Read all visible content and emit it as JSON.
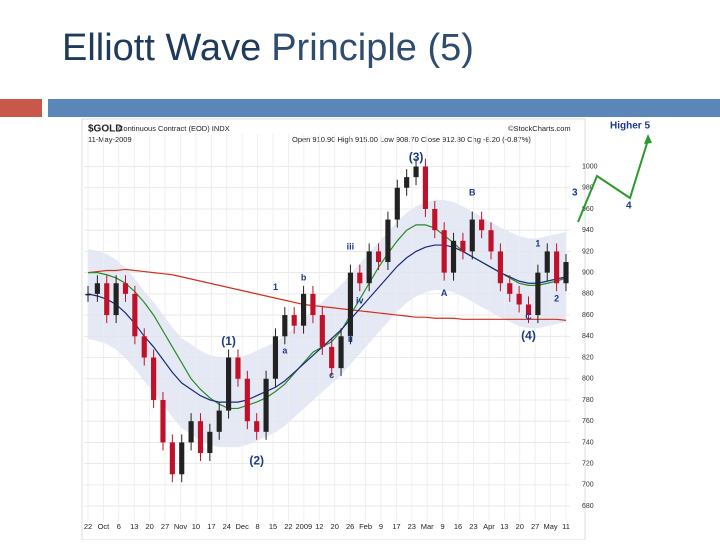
{
  "slide": {
    "title_strong": "Elliott Wave",
    "title_rest": "Principle (5)"
  },
  "chart_data": {
    "type": "candlestick",
    "header": [
      "$GOLD",
      "Continuous Contract (EOD) INDX",
      "11-May-2009",
      "Open 910.90 High 915.00 Low 908.70 Close 912.30 Chg -8.20 (-0.87%)",
      "©StockCharts.com"
    ],
    "values": [
      880,
      890,
      860,
      890,
      880,
      840,
      820,
      780,
      740,
      710,
      740,
      760,
      730,
      750,
      770,
      820,
      800,
      760,
      750,
      800,
      840,
      860,
      850,
      880,
      860,
      830,
      810,
      840,
      900,
      890,
      920,
      910,
      950,
      980,
      990,
      1000,
      960,
      940,
      900,
      930,
      920,
      950,
      940,
      920,
      890,
      880,
      870,
      860,
      900,
      920,
      890,
      910
    ],
    "lines": [
      {
        "color": "#d03020",
        "values": [
          900,
          901,
          902,
          902,
          903,
          902,
          901,
          900,
          899,
          898,
          896,
          894,
          892,
          890,
          888,
          886,
          884,
          882,
          880,
          878,
          876,
          874,
          872,
          870,
          869,
          868,
          867,
          866,
          865,
          864,
          863,
          862,
          861,
          860,
          859,
          858,
          858,
          857,
          857,
          857,
          856,
          856,
          856,
          856,
          856,
          856,
          856,
          856,
          856,
          856,
          856,
          855
        ]
      },
      {
        "color": "#2a8a2a",
        "values": [
          900,
          900,
          898,
          895,
          890,
          882,
          872,
          860,
          845,
          830,
          815,
          800,
          790,
          782,
          776,
          772,
          772,
          775,
          778,
          782,
          788,
          795,
          805,
          815,
          825,
          830,
          835,
          845,
          860,
          875,
          890,
          905,
          918,
          930,
          940,
          945,
          945,
          942,
          935,
          928,
          920,
          915,
          910,
          905,
          900,
          895,
          890,
          888,
          888,
          890,
          892,
          895
        ]
      },
      {
        "color": "#1a2a7a",
        "values": [
          880,
          878,
          875,
          870,
          862,
          852,
          840,
          830,
          818,
          806,
          796,
          790,
          784,
          780,
          778,
          778,
          778,
          780,
          784,
          788,
          792,
          798,
          806,
          814,
          822,
          830,
          838,
          846,
          856,
          866,
          876,
          886,
          896,
          906,
          914,
          920,
          924,
          926,
          926,
          924,
          920,
          915,
          910,
          905,
          900,
          896,
          892,
          890,
          890,
          892,
          894,
          896
        ]
      }
    ],
    "ylim": [
      665,
      1025
    ],
    "yticks": [
      680,
      700,
      720,
      740,
      760,
      780,
      800,
      820,
      840,
      860,
      880,
      900,
      920,
      940,
      960,
      980,
      1000
    ],
    "x_labels": [
      "22",
      "Oct",
      "6",
      "13",
      "20",
      "27",
      "Nov",
      "10",
      "17",
      "24",
      "Dec",
      "8",
      "15",
      "22",
      "2009",
      "12",
      "20",
      "26",
      "Feb",
      "9",
      "17",
      "23",
      "Mar",
      "9",
      "16",
      "23",
      "Apr",
      "13",
      "20",
      "27",
      "May",
      "11"
    ],
    "grid": true,
    "annotations": [
      {
        "text": "(1)",
        "x": 15,
        "y": 835,
        "color": "#1a3a8a"
      },
      {
        "text": "(2)",
        "x": 18,
        "y": 722,
        "color": "#1a3a8a"
      },
      {
        "text": "(3)",
        "x": 35,
        "y": 1008,
        "color": "#1a3a8a"
      },
      {
        "text": "(4)",
        "x": 47,
        "y": 840,
        "color": "#1a3a8a"
      },
      {
        "text": "C",
        "x": 47,
        "y": 858,
        "color": "#1a3a8a"
      },
      {
        "text": "A",
        "x": 38,
        "y": 880,
        "color": "#1a3a8a"
      },
      {
        "text": "B",
        "x": 41,
        "y": 975,
        "color": "#1a3a8a"
      },
      {
        "text": "1",
        "x": 48,
        "y": 927,
        "color": "#1a3a8a"
      },
      {
        "text": "2",
        "x": 50,
        "y": 875,
        "color": "#1a3a8a"
      },
      {
        "text": "1",
        "x": 20,
        "y": 886,
        "color": "#1a3a8a"
      },
      {
        "text": "b",
        "x": 23,
        "y": 895,
        "color": "#1a3a8a"
      },
      {
        "text": "a",
        "x": 21,
        "y": 826,
        "color": "#1a3a8a"
      },
      {
        "text": "c",
        "x": 26,
        "y": 803,
        "color": "#1a3a8a"
      },
      {
        "text": "iii",
        "x": 28,
        "y": 924,
        "color": "#1a3a8a"
      },
      {
        "text": "iv",
        "x": 29,
        "y": 873,
        "color": "#1a3a8a"
      },
      {
        "text": "ii",
        "x": 28,
        "y": 837,
        "color": "#1a3a8a"
      }
    ],
    "projection": [
      "3",
      "Higher 5",
      "4"
    ]
  }
}
